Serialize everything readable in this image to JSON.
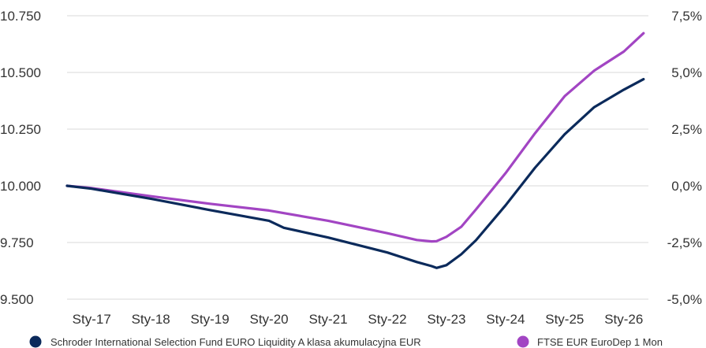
{
  "chart_data": {
    "type": "line",
    "title": "",
    "x_tick_labels": [
      "Sty-17",
      "Sty-18",
      "Sty-19",
      "Sty-20",
      "Sty-21",
      "Sty-22",
      "Sty-23",
      "Sty-24",
      "Sty-25",
      "Sty-26"
    ],
    "x_range": [
      "2016-08",
      "2026-06"
    ],
    "y_left": {
      "ticks": [
        "9.500",
        "9.750",
        "10.000",
        "10.250",
        "10.500",
        "10.750"
      ],
      "range": [
        9500,
        10750
      ],
      "unit": "EUR"
    },
    "y_right": {
      "ticks": [
        "-5,0%",
        "-2,5%",
        "0,0%",
        "2,5%",
        "5,0%",
        "7,5%"
      ],
      "range": [
        -5.0,
        7.5
      ],
      "unit": "%"
    },
    "grid": "horizontal",
    "legend_position": "bottom",
    "series": [
      {
        "name": "Schroder International Selection Fund EURO Liquidity A klasa akumulacyjna EUR",
        "color": "#0b2a5b",
        "x": [
          "2016-08",
          "2017-01",
          "2018-01",
          "2019-01",
          "2020-01",
          "2020-04",
          "2021-01",
          "2022-01",
          "2022-07",
          "2022-10",
          "2022-11",
          "2023-01",
          "2023-04",
          "2023-07",
          "2024-01",
          "2024-07",
          "2025-01",
          "2025-07",
          "2026-01",
          "2026-05"
        ],
        "values": [
          10000,
          9987,
          9943,
          9893,
          9846,
          9815,
          9772,
          9706,
          9664,
          9646,
          9638,
          9650,
          9698,
          9760,
          9914,
          10080,
          10227,
          10347,
          10424,
          10470
        ]
      },
      {
        "name": "FTSE EUR EuroDep 1 Mon",
        "color": "#a245c3",
        "x": [
          "2016-08",
          "2017-01",
          "2018-01",
          "2019-01",
          "2020-01",
          "2021-01",
          "2022-01",
          "2022-07",
          "2022-10",
          "2022-11",
          "2023-01",
          "2023-04",
          "2023-07",
          "2024-01",
          "2024-07",
          "2025-01",
          "2025-07",
          "2026-01",
          "2026-05"
        ],
        "values": [
          10000,
          9990,
          9954,
          9921,
          9891,
          9846,
          9791,
          9761,
          9755,
          9756,
          9775,
          9819,
          9896,
          10056,
          10232,
          10395,
          10508,
          10592,
          10673
        ]
      }
    ]
  }
}
